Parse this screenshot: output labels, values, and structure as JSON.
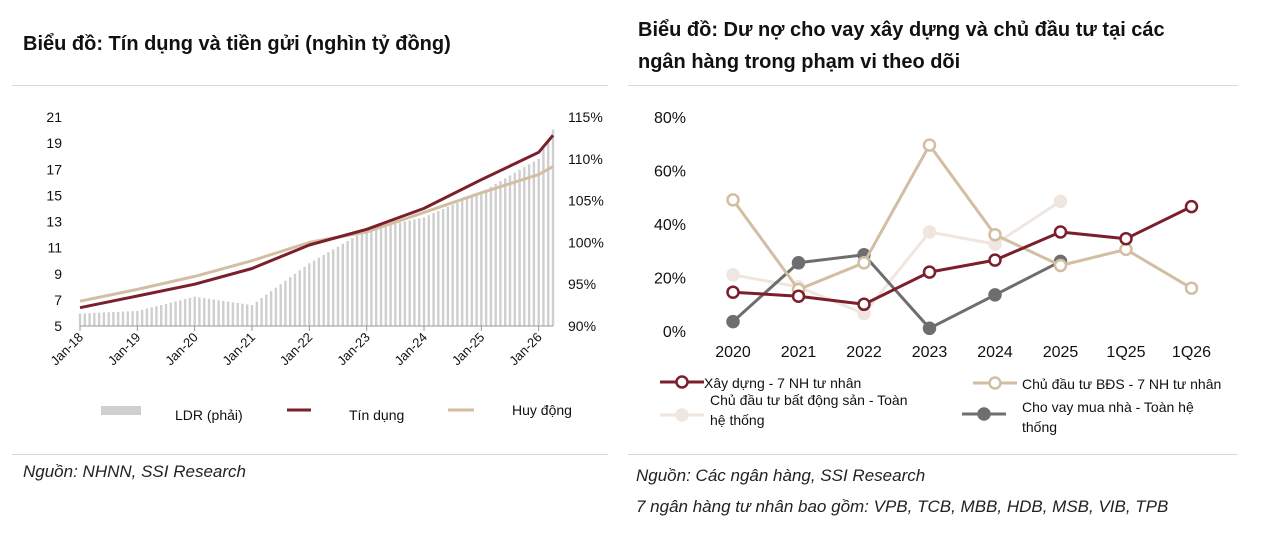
{
  "left": {
    "title": "Biểu đồ: Tín dụng và tiền gửi (nghìn tỷ đồng)",
    "source": "Nguồn: NHNN, SSI Research"
  },
  "right": {
    "title_line1": "Biểu đồ: Dư nợ cho vay xây dựng và chủ đầu tư tại các",
    "title_line2": "ngân hàng trong phạm vi theo dõi",
    "source": "Nguồn: Các ngân hàng, SSI Research",
    "note": "7 ngân hàng tư nhân bao gồm: VPB, TCB, MBB, HDB, MSB, VIB, TPB"
  },
  "colors": {
    "maroon": "#7a1f2b",
    "tan": "#d2bfa3",
    "light": "#efe6df",
    "gray": "#6e6e6e",
    "bar": "#cfcfcf"
  },
  "chart_data": [
    {
      "type": "line",
      "title": "Biểu đồ: Tín dụng và tiền gửi (nghìn tỷ đồng)",
      "x_tick_labels": [
        "Jan-18",
        "Jan-19",
        "Jan-20",
        "Jan-21",
        "Jan-22",
        "Jan-23",
        "Jan-24",
        "Jan-25",
        "Jan-26"
      ],
      "y_left_ticks": [
        "21",
        "19",
        "17",
        "15",
        "13",
        "11",
        "9",
        "7",
        "5"
      ],
      "y_right_ticks": [
        "115%",
        "110%",
        "105%",
        "100%",
        "95%",
        "90%"
      ],
      "ylim_left": [
        5,
        21
      ],
      "ylim_right": [
        90,
        115
      ],
      "x": [
        "Jan-18",
        "Jan-19",
        "Jan-20",
        "Jan-21",
        "Jan-22",
        "Jan-23",
        "Jan-24",
        "Jan-25",
        "Jan-26",
        "Apr-26"
      ],
      "series": [
        {
          "name": "LDR (phải)",
          "type": "bar",
          "axis": "right",
          "values": [
            91.5,
            91.8,
            93.5,
            92.5,
            97.5,
            101.5,
            103.0,
            106.0,
            110.0,
            113.5
          ]
        },
        {
          "name": "Tín dụng",
          "type": "line",
          "axis": "left",
          "values": [
            6.4,
            7.3,
            8.2,
            9.4,
            11.2,
            12.4,
            14.0,
            16.2,
            18.3,
            19.6
          ]
        },
        {
          "name": "Huy động",
          "type": "line",
          "axis": "left",
          "values": [
            6.9,
            7.8,
            8.8,
            10.0,
            11.4,
            12.2,
            13.7,
            15.2,
            16.6,
            17.2
          ]
        }
      ],
      "legend": [
        "LDR (phải)",
        "Tín dụng",
        "Huy động"
      ]
    },
    {
      "type": "line",
      "title": "Biểu đồ: Dư nợ cho vay xây dựng và chủ đầu tư tại các ngân hàng trong phạm vi theo dõi",
      "categories": [
        "2020",
        "2021",
        "2022",
        "2023",
        "2024",
        "2025",
        "1Q25",
        "1Q26"
      ],
      "y_ticks": [
        "80%",
        "60%",
        "40%",
        "20%",
        "0%"
      ],
      "ylim": [
        0,
        80
      ],
      "series": [
        {
          "name": "Xây dựng - 7 NH tư nhân",
          "values": [
            14.5,
            13.0,
            10.0,
            22.0,
            26.5,
            37.0,
            34.5,
            46.5
          ]
        },
        {
          "name": "Chủ đầu tư BĐS - 7 NH tư nhân",
          "values": [
            49.0,
            15.5,
            25.5,
            69.5,
            36.0,
            24.5,
            30.5,
            16.0
          ]
        },
        {
          "name": "Chủ đầu tư bất động sản - Toàn hệ thống",
          "values": [
            21.0,
            16.5,
            6.5,
            37.0,
            32.5,
            48.5,
            null,
            null
          ]
        },
        {
          "name": "Cho vay mua nhà - Toàn hệ thống",
          "values": [
            3.5,
            25.5,
            28.5,
            1.0,
            13.5,
            26.0,
            null,
            null
          ]
        }
      ],
      "legend": [
        {
          "line1": "Xây dựng - 7 NH tư nhân",
          "line2": ""
        },
        {
          "line1": "Chủ đầu tư BĐS - 7 NH tư nhân",
          "line2": ""
        },
        {
          "line1": "Chủ đầu tư bất động sản - Toàn",
          "line2": "hệ thống"
        },
        {
          "line1": "Cho vay mua nhà - Toàn hệ",
          "line2": "thống"
        }
      ]
    }
  ]
}
